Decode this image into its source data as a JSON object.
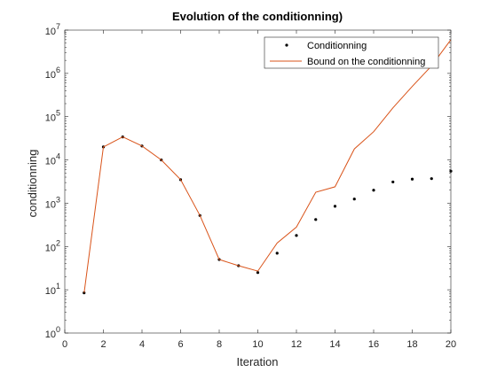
{
  "chart_data": {
    "type": "line",
    "title": "Evolution of the conditionning)",
    "xlabel": "Iteration",
    "ylabel": "conditionning",
    "xlim": [
      0,
      20
    ],
    "ylim": [
      1,
      10000000
    ],
    "yscale": "log",
    "grid": false,
    "legend_position": "top-right",
    "x_ticks": [
      0,
      2,
      4,
      6,
      8,
      10,
      12,
      14,
      16,
      18,
      20
    ],
    "y_ticks": [
      {
        "value": 1,
        "base": "10",
        "exp": "0"
      },
      {
        "value": 10,
        "base": "10",
        "exp": "1"
      },
      {
        "value": 100,
        "base": "10",
        "exp": "2"
      },
      {
        "value": 1000,
        "base": "10",
        "exp": "3"
      },
      {
        "value": 10000,
        "base": "10",
        "exp": "4"
      },
      {
        "value": 100000,
        "base": "10",
        "exp": "5"
      },
      {
        "value": 1000000,
        "base": "10",
        "exp": "6"
      },
      {
        "value": 10000000,
        "base": "10",
        "exp": "7"
      }
    ],
    "series": [
      {
        "name": "Conditionning",
        "style": "markers",
        "color": "#000000",
        "x": [
          1,
          2,
          3,
          4,
          5,
          6,
          7,
          8,
          9,
          10,
          11,
          12,
          13,
          14,
          15,
          16,
          17,
          18,
          19,
          20
        ],
        "values": [
          8.5,
          20000,
          34000,
          21000,
          10000,
          3500,
          520,
          50,
          36,
          25,
          70,
          180,
          420,
          850,
          1250,
          2000,
          3100,
          3600,
          3700,
          5500
        ]
      },
      {
        "name": "Bound on the conditionning",
        "style": "line",
        "color": "#d95319",
        "x": [
          1,
          2,
          3,
          4,
          5,
          6,
          7,
          8,
          9,
          10,
          11,
          12,
          13,
          14,
          15,
          16,
          17,
          18,
          19,
          20
        ],
        "values": [
          8.5,
          20000,
          34000,
          21000,
          10000,
          3500,
          520,
          50,
          36,
          27,
          120,
          280,
          1800,
          2400,
          18000,
          45000,
          160000,
          500000,
          1500000,
          6000000
        ]
      }
    ]
  }
}
